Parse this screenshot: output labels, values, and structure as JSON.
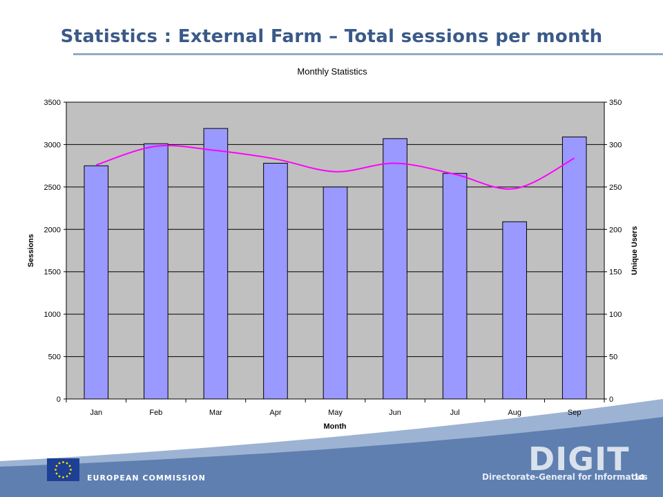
{
  "slide": {
    "title": "Statistics : External Farm – Total sessions per month",
    "page_number": "14"
  },
  "footer": {
    "org_label": "EUROPEAN COMMISSION",
    "logo_text": "DIGIT",
    "logo_subtitle": "Directorate-General for Informatics"
  },
  "colors": {
    "bar": "#9999ff",
    "line": "#ff00ff",
    "plot_bg": "#c0c0c0",
    "title_blue": "#3a5a88"
  },
  "chart_data": {
    "type": "bar",
    "title": "Monthly Statistics",
    "xlabel": "Month",
    "ylabel": "Sessions",
    "y2label": "Unique Users",
    "categories": [
      "Jan",
      "Feb",
      "Mar",
      "Apr",
      "May",
      "Jun",
      "Jul",
      "Aug",
      "Sep"
    ],
    "series": [
      {
        "type": "bar",
        "axis": "left",
        "values": [
          2750,
          3010,
          3190,
          2780,
          2500,
          3070,
          2660,
          2090,
          3090
        ]
      },
      {
        "type": "line",
        "axis": "right",
        "smooth": true,
        "values": [
          276,
          298,
          293,
          283,
          268,
          278,
          265,
          248,
          284
        ]
      }
    ],
    "ylim": [
      0,
      3500
    ],
    "y2lim": [
      0,
      350
    ],
    "yticks": [
      0,
      500,
      1000,
      1500,
      2000,
      2500,
      3000,
      3500
    ],
    "y2ticks": [
      0,
      50,
      100,
      150,
      200,
      250,
      300,
      350
    ],
    "grid": true,
    "legend": "none"
  }
}
